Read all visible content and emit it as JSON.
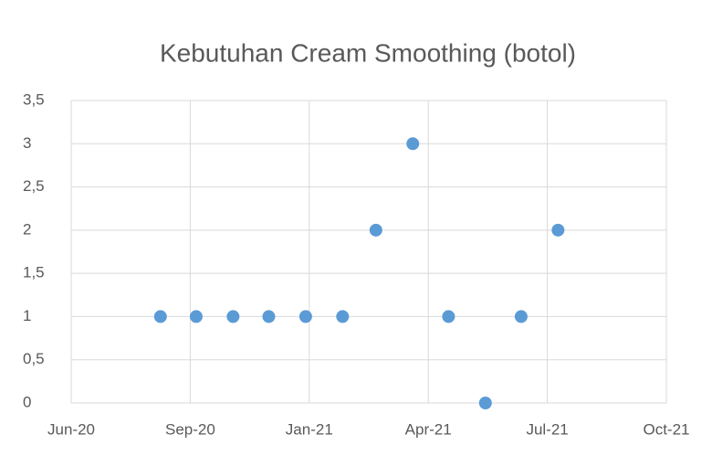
{
  "chart_data": {
    "type": "scatter",
    "title": "Kebutuhan Cream Smoothing (botol)",
    "x": [
      44075,
      44105,
      44136,
      44166,
      44197,
      44228,
      44256,
      44287,
      44317,
      44348,
      44378,
      44409
    ],
    "series": [
      {
        "name": "Kebutuhan Cream Smoothing (botol)",
        "color": "#5b9bd5",
        "values": [
          1,
          1,
          1,
          1,
          1,
          1,
          2,
          3,
          1,
          0,
          1,
          2
        ]
      }
    ],
    "xlim": [
      44000,
      44500
    ],
    "xticks": [
      {
        "value": 44000,
        "label": "Jun-20"
      },
      {
        "value": 44100,
        "label": "Sep-20"
      },
      {
        "value": 44200,
        "label": "Jan-21"
      },
      {
        "value": 44300,
        "label": "Apr-21"
      },
      {
        "value": 44400,
        "label": "Jul-21"
      },
      {
        "value": 44500,
        "label": "Oct-21"
      }
    ],
    "ylim": [
      0,
      3.5
    ],
    "yticks": [
      0,
      {
        "value": 0.5,
        "label": "0,5"
      },
      1,
      {
        "value": 1.5,
        "label": "1,5"
      },
      2,
      {
        "value": 2.5,
        "label": "2,5"
      },
      3,
      {
        "value": 3.5,
        "label": "3,5"
      }
    ],
    "grid": true
  }
}
